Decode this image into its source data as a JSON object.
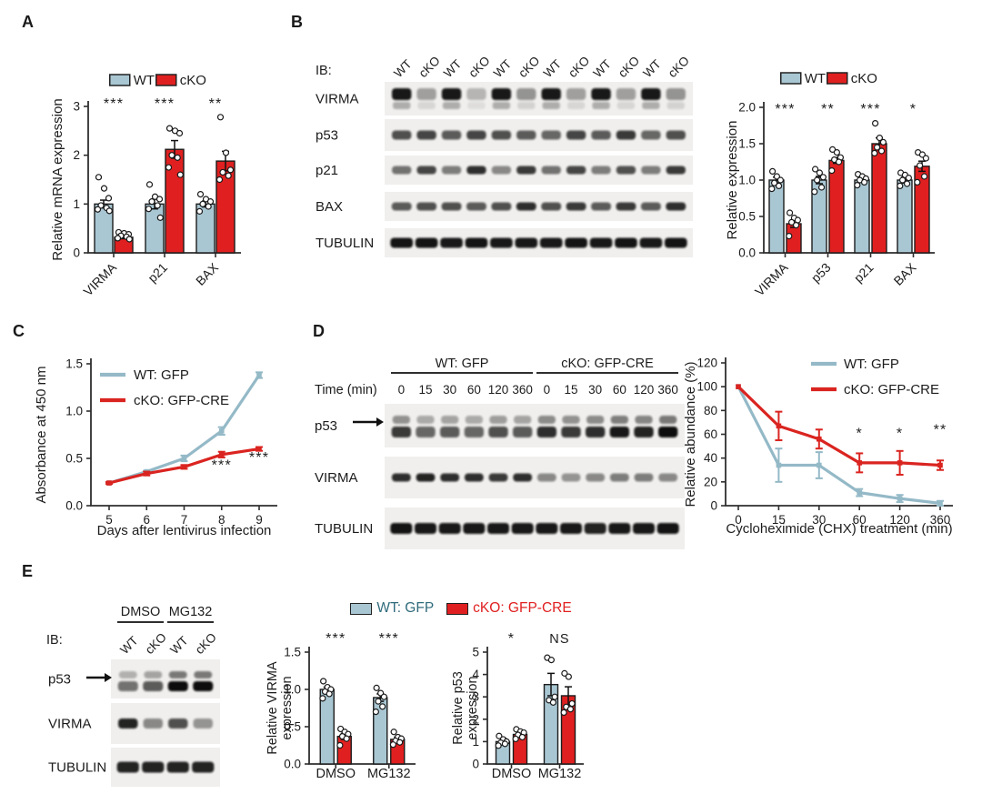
{
  "colors": {
    "wt_fill": "#a9c7d3",
    "wt_text": "#2f6b7c",
    "wt_line": "#94b9c7",
    "cko_fill": "#e02020",
    "cko_text": "#e02020",
    "cko_line": "#da2420",
    "bar_border": "#1c1c1c",
    "axis": "#2e2e2e",
    "blot_bg": "#f0efed",
    "band": "#0e0c0b"
  },
  "panels": {
    "A": {
      "label": "A"
    },
    "B": {
      "label": "B"
    },
    "C": {
      "label": "C"
    },
    "D": {
      "label": "D"
    },
    "E": {
      "label": "E"
    }
  },
  "legendE": {
    "items": [
      {
        "label": "WT: GFP",
        "role": "wt"
      },
      {
        "label": "cKO: GFP-CRE",
        "role": "cko"
      }
    ]
  },
  "chart_data": [
    {
      "id": "A",
      "type": "bar",
      "ylabel": "Relative mRNA expression",
      "ylim": [
        0,
        3
      ],
      "yticks": [
        0,
        1,
        2,
        3
      ],
      "ydecimals": 0,
      "categories": [
        "VIRMA",
        "p21",
        "BAX"
      ],
      "category_rotate": true,
      "legend": {
        "items": [
          {
            "label": "WT",
            "role": "wt"
          },
          {
            "label": "cKO",
            "role": "cko"
          }
        ],
        "position": "top"
      },
      "series": [
        {
          "name": "WT",
          "role": "wt",
          "values": [
            1.0,
            1.0,
            1.0
          ],
          "errors": [
            0.08,
            0.1,
            0.06
          ],
          "points": [
            [
              1.55,
              1.32,
              1.12,
              0.97,
              0.92,
              0.89,
              0.86
            ],
            [
              1.4,
              1.15,
              1.1,
              1.05,
              0.97,
              0.9,
              0.72
            ],
            [
              1.2,
              1.1,
              1.05,
              1.0,
              0.95,
              0.85
            ]
          ]
        },
        {
          "name": "cKO",
          "role": "cko",
          "values": [
            0.32,
            2.12,
            1.88
          ],
          "errors": [
            0.03,
            0.18,
            0.2
          ],
          "points": [
            [
              0.42,
              0.4,
              0.38,
              0.35,
              0.33,
              0.3,
              0.28
            ],
            [
              2.55,
              2.5,
              2.45,
              2.0,
              1.95,
              1.75,
              1.6
            ],
            [
              2.78,
              2.05,
              1.7,
              1.65,
              1.58,
              1.5
            ]
          ]
        }
      ],
      "significance": [
        "***",
        "***",
        "**"
      ]
    },
    {
      "id": "B",
      "type": "bar",
      "ylabel": "Relative expression",
      "ylim": [
        0,
        2
      ],
      "yticks": [
        0,
        0.5,
        1,
        1.5,
        2
      ],
      "ydecimals": 1,
      "categories": [
        "VIRMA",
        "p53",
        "p21",
        "BAX"
      ],
      "category_rotate": true,
      "legend": {
        "items": [
          {
            "label": "WT",
            "role": "wt"
          },
          {
            "label": "cKO",
            "role": "cko"
          }
        ],
        "position": "top"
      },
      "series": [
        {
          "name": "WT",
          "role": "wt",
          "values": [
            1.0,
            1.0,
            1.0,
            1.0
          ],
          "errors": [
            0.04,
            0.05,
            0.03,
            0.04
          ],
          "points": [
            [
              1.12,
              1.05,
              1.0,
              0.96,
              0.92,
              0.88
            ],
            [
              1.15,
              1.1,
              1.04,
              1.0,
              0.9,
              0.84
            ],
            [
              1.08,
              1.05,
              1.02,
              1.0,
              0.97,
              0.93
            ],
            [
              1.1,
              1.07,
              1.03,
              1.0,
              0.95,
              0.92
            ]
          ]
        },
        {
          "name": "cKO",
          "role": "cko",
          "values": [
            0.4,
            1.27,
            1.5,
            1.19
          ],
          "errors": [
            0.05,
            0.04,
            0.08,
            0.07
          ],
          "points": [
            [
              0.55,
              0.48,
              0.45,
              0.42,
              0.38,
              0.23
            ],
            [
              1.42,
              1.38,
              1.31,
              1.28,
              1.25,
              1.13
            ],
            [
              1.78,
              1.58,
              1.52,
              1.45,
              1.4,
              1.37
            ],
            [
              1.38,
              1.35,
              1.3,
              1.2,
              1.05,
              0.97
            ]
          ]
        }
      ],
      "significance": [
        "***",
        "**",
        "***",
        "*"
      ]
    },
    {
      "id": "C",
      "type": "line",
      "ylabel": "Absorbance at 450 nm",
      "xlabel": "Days after lentivirus infection",
      "ylim": [
        0,
        1.5
      ],
      "yticks": [
        0,
        0.5,
        1,
        1.5
      ],
      "ydecimals": 1,
      "x": [
        "5",
        "6",
        "7",
        "8",
        "9"
      ],
      "series": [
        {
          "name": "WT: GFP",
          "role": "wt",
          "values": [
            0.24,
            0.36,
            0.5,
            0.79,
            1.38
          ],
          "errors": [
            0.01,
            0.01,
            0.03,
            0.04,
            0.03
          ]
        },
        {
          "name": "cKO: GFP-CRE",
          "role": "cko",
          "values": [
            0.24,
            0.34,
            0.41,
            0.54,
            0.6
          ],
          "errors": [
            0.01,
            0.02,
            0.02,
            0.03,
            0.02
          ]
        }
      ],
      "sig_marks": [
        {
          "x_index": 3,
          "y": 0.38,
          "text": "***"
        },
        {
          "x_index": 4,
          "y": 0.46,
          "text": "***"
        }
      ]
    },
    {
      "id": "D",
      "type": "line",
      "ylabel": "Relative abundance (%)",
      "xlabel": "Cycloheximide (CHX) treatment (min)",
      "ylim": [
        0,
        120
      ],
      "yticks": [
        0,
        20,
        40,
        60,
        80,
        100,
        120
      ],
      "ydecimals": 0,
      "x": [
        "0",
        "15",
        "30",
        "60",
        "120",
        "360"
      ],
      "series": [
        {
          "name": "WT: GFP",
          "role": "wt",
          "values": [
            100,
            34,
            34,
            11,
            6,
            2
          ],
          "errors": [
            0,
            14,
            11,
            3,
            3,
            2
          ]
        },
        {
          "name": "cKO: GFP-CRE",
          "role": "cko",
          "values": [
            100,
            67,
            56,
            36,
            36,
            34
          ],
          "errors": [
            0,
            12,
            8,
            8,
            10,
            4
          ]
        }
      ],
      "sig_marks": [
        {
          "x_index": 3,
          "y": 57,
          "text": "*"
        },
        {
          "x_index": 4,
          "y": 57,
          "text": "*"
        },
        {
          "x_index": 5,
          "y": 60,
          "text": "**"
        }
      ]
    },
    {
      "id": "E1",
      "type": "bar",
      "ylabel_lines": [
        "Relative VIRMA",
        "expression"
      ],
      "ylim": [
        0,
        1.5
      ],
      "yticks": [
        0,
        0.5,
        1,
        1.5
      ],
      "ydecimals": 1,
      "categories": [
        "DMSO",
        "MG132"
      ],
      "category_rotate": false,
      "series": [
        {
          "name": "WT: GFP",
          "role": "wt",
          "values": [
            1.0,
            0.89
          ],
          "errors": [
            0.03,
            0.05
          ],
          "points": [
            [
              1.11,
              1.03,
              1.0,
              0.97,
              0.94,
              0.88
            ],
            [
              1.02,
              0.95,
              0.9,
              0.84,
              0.77,
              0.7
            ]
          ]
        },
        {
          "name": "cKO: GFP-CRE",
          "role": "cko",
          "values": [
            0.37,
            0.33
          ],
          "errors": [
            0.04,
            0.03
          ],
          "points": [
            [
              0.47,
              0.43,
              0.4,
              0.37,
              0.34,
              0.25
            ],
            [
              0.43,
              0.36,
              0.34,
              0.31,
              0.29,
              0.26
            ]
          ]
        }
      ],
      "significance": [
        "***",
        "***"
      ]
    },
    {
      "id": "E2",
      "type": "bar",
      "ylabel_lines": [
        "Relative p53",
        "expression"
      ],
      "ylim": [
        0,
        5
      ],
      "yticks": [
        0,
        1,
        2,
        3,
        4,
        5
      ],
      "ydecimals": 0,
      "categories": [
        "DMSO",
        "MG132"
      ],
      "category_rotate": false,
      "series": [
        {
          "name": "WT: GFP",
          "role": "wt",
          "values": [
            1.0,
            3.55
          ],
          "errors": [
            0.15,
            0.5
          ],
          "points": [
            [
              1.25,
              1.1,
              1.0,
              0.95,
              0.9,
              0.82
            ],
            [
              4.75,
              4.65,
              3.0,
              2.85,
              2.75
            ]
          ]
        },
        {
          "name": "cKO: GFP-CRE",
          "role": "cko",
          "values": [
            1.32,
            3.05
          ],
          "errors": [
            0.12,
            0.4
          ],
          "points": [
            [
              1.55,
              1.45,
              1.4,
              1.3,
              1.2,
              1.12
            ],
            [
              4.05,
              3.9,
              2.7,
              2.55,
              2.45,
              2.3
            ]
          ]
        }
      ],
      "significance": [
        "*",
        "NS"
      ]
    }
  ],
  "blots": [
    {
      "id": "B",
      "ib_label": "IB:",
      "lane_labels": [
        "WT",
        "cKO",
        "WT",
        "cKO",
        "WT",
        "cKO",
        "WT",
        "cKO",
        "WT",
        "cKO",
        "WT",
        "cKO"
      ],
      "lane_label_rotate": true,
      "rows": [
        {
          "label": "VIRMA",
          "intensities": [
            0.95,
            0.35,
            0.95,
            0.25,
            0.95,
            0.4,
            0.95,
            0.35,
            0.95,
            0.35,
            0.95,
            0.4
          ]
        },
        {
          "label": "p53",
          "intensities": [
            0.7,
            0.75,
            0.65,
            0.75,
            0.7,
            0.65,
            0.6,
            0.75,
            0.65,
            0.8,
            0.6,
            0.7
          ]
        },
        {
          "label": "p21",
          "intensities": [
            0.55,
            0.75,
            0.5,
            0.85,
            0.45,
            0.8,
            0.55,
            0.75,
            0.5,
            0.7,
            0.5,
            0.8
          ]
        },
        {
          "label": "BAX",
          "intensities": [
            0.65,
            0.7,
            0.7,
            0.65,
            0.7,
            0.85,
            0.7,
            0.8,
            0.65,
            0.8,
            0.65,
            0.85
          ]
        },
        {
          "label": "TUBULIN",
          "intensities": [
            0.97,
            0.97,
            0.95,
            0.97,
            0.95,
            0.95,
            0.95,
            0.97,
            0.95,
            0.97,
            0.95,
            0.97
          ]
        }
      ]
    },
    {
      "id": "D",
      "groups": [
        {
          "label": "WT: GFP",
          "from": 0,
          "to": 5
        },
        {
          "label": "cKO: GFP-CRE",
          "from": 6,
          "to": 11
        }
      ],
      "row_header": "Time (min)",
      "lane_labels": [
        "0",
        "15",
        "30",
        "60",
        "120",
        "360",
        "0",
        "15",
        "30",
        "60",
        "120",
        "360"
      ],
      "lane_label_rotate": false,
      "rows": [
        {
          "label": "p53",
          "arrow": true,
          "intensities": [
            0.75,
            0.55,
            0.6,
            0.55,
            0.65,
            0.6,
            0.8,
            0.75,
            0.8,
            0.9,
            0.85,
            0.95
          ]
        },
        {
          "label": "VIRMA",
          "intensities": [
            0.85,
            0.9,
            0.85,
            0.85,
            0.8,
            0.85,
            0.45,
            0.4,
            0.45,
            0.5,
            0.5,
            0.45
          ]
        },
        {
          "label": "TUBULIN",
          "intensities": [
            0.97,
            0.95,
            0.95,
            0.95,
            0.95,
            0.95,
            0.95,
            0.95,
            0.9,
            0.95,
            0.95,
            0.97
          ]
        }
      ]
    },
    {
      "id": "E",
      "ib_label": "IB:",
      "groups": [
        {
          "label": "DMSO",
          "from": 0,
          "to": 1
        },
        {
          "label": "MG132",
          "from": 2,
          "to": 3
        }
      ],
      "lane_labels": [
        "WT",
        "cKO",
        "WT",
        "cKO"
      ],
      "lane_label_rotate": true,
      "rows": [
        {
          "label": "p53",
          "arrow": true,
          "intensities": [
            0.5,
            0.6,
            0.95,
            0.95
          ]
        },
        {
          "label": "VIRMA",
          "intensities": [
            0.9,
            0.45,
            0.7,
            0.4
          ]
        },
        {
          "label": "TUBULIN",
          "intensities": [
            0.9,
            0.9,
            0.9,
            0.9
          ]
        }
      ]
    }
  ]
}
